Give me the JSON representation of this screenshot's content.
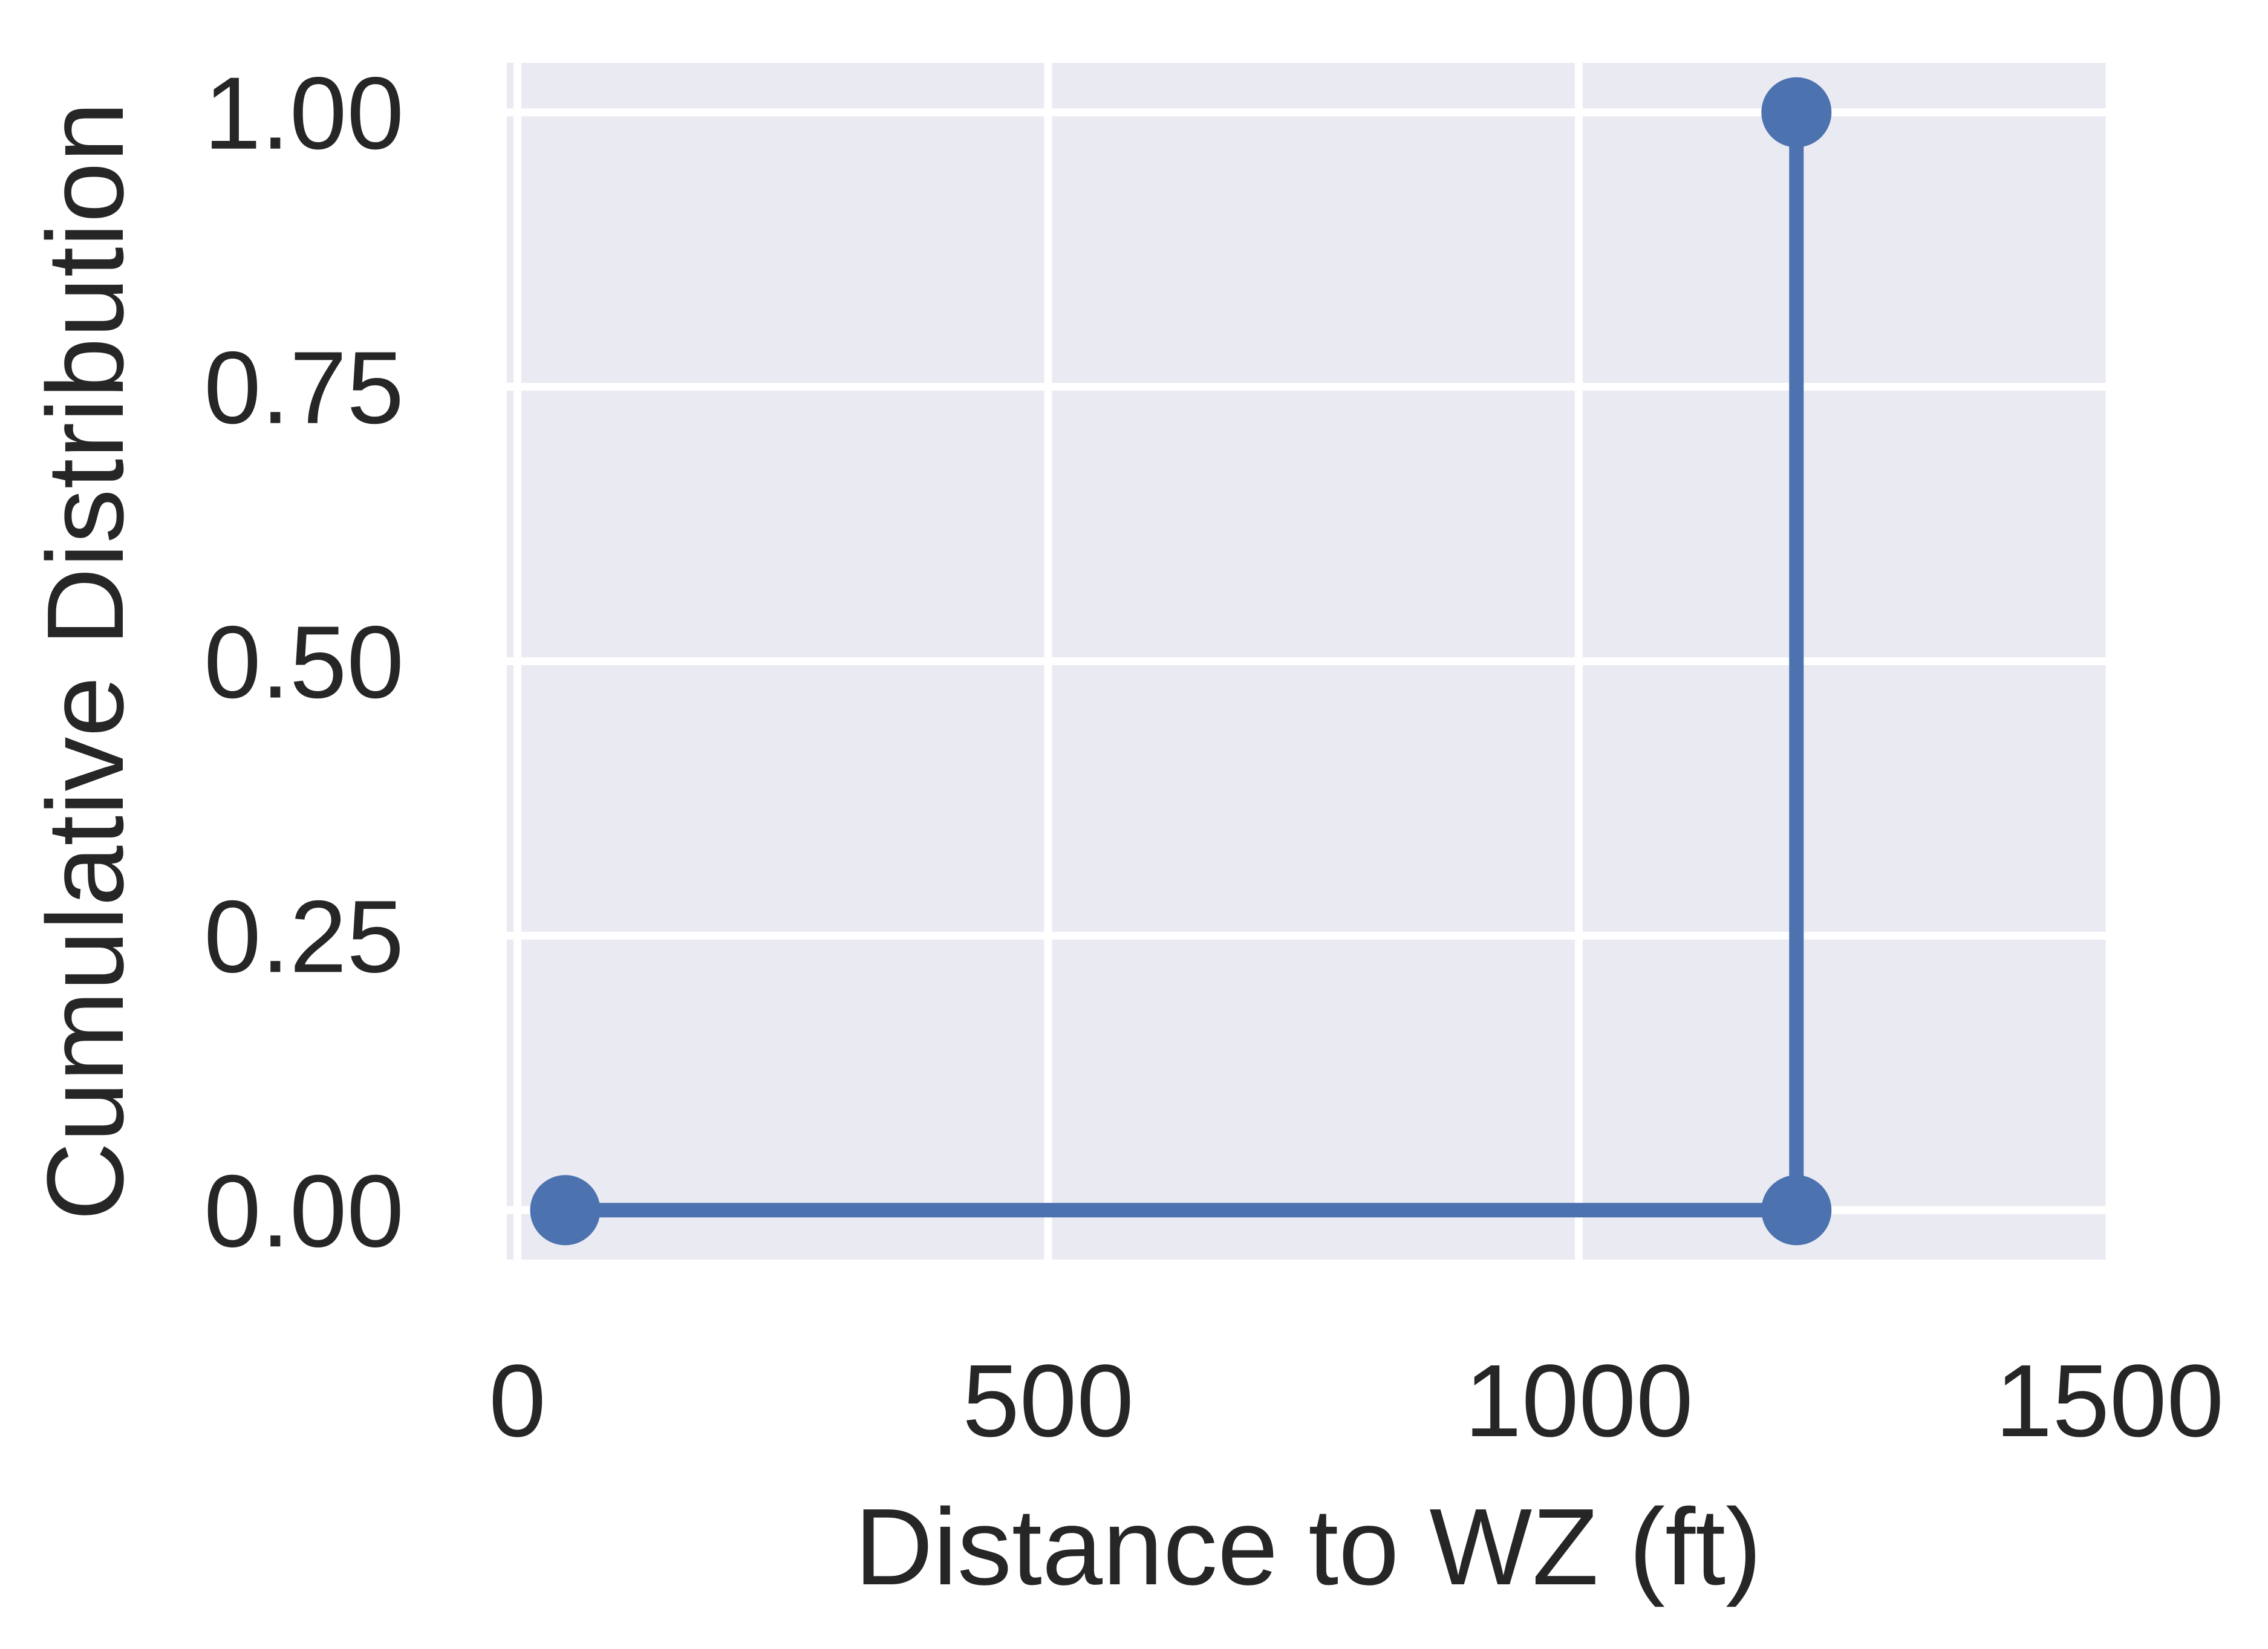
{
  "chart_data": {
    "type": "line",
    "title": "",
    "xlabel": "Distance to WZ (ft)",
    "ylabel": "Cumulative Distribution",
    "xlim": [
      -10,
      1500
    ],
    "ylim": [
      -0.045,
      1.045
    ],
    "xticks": [
      0,
      500,
      1000,
      1500
    ],
    "xtick_labels": [
      "0",
      "500",
      "1000",
      "1500"
    ],
    "yticks": [
      0.0,
      0.25,
      0.5,
      0.75,
      1.0
    ],
    "ytick_labels": [
      "0.00",
      "0.25",
      "0.50",
      "0.75",
      "1.00"
    ],
    "grid": true,
    "series": [
      {
        "color": "#4c72b0",
        "x": [
          45,
          1205,
          1205
        ],
        "y": [
          0.0,
          0.0,
          1.0
        ],
        "marker": "circle"
      }
    ],
    "colors": {
      "plot_background": "#eaeaf2",
      "grid": "#ffffff",
      "text": "#262626",
      "series": "#4c72b0"
    }
  }
}
